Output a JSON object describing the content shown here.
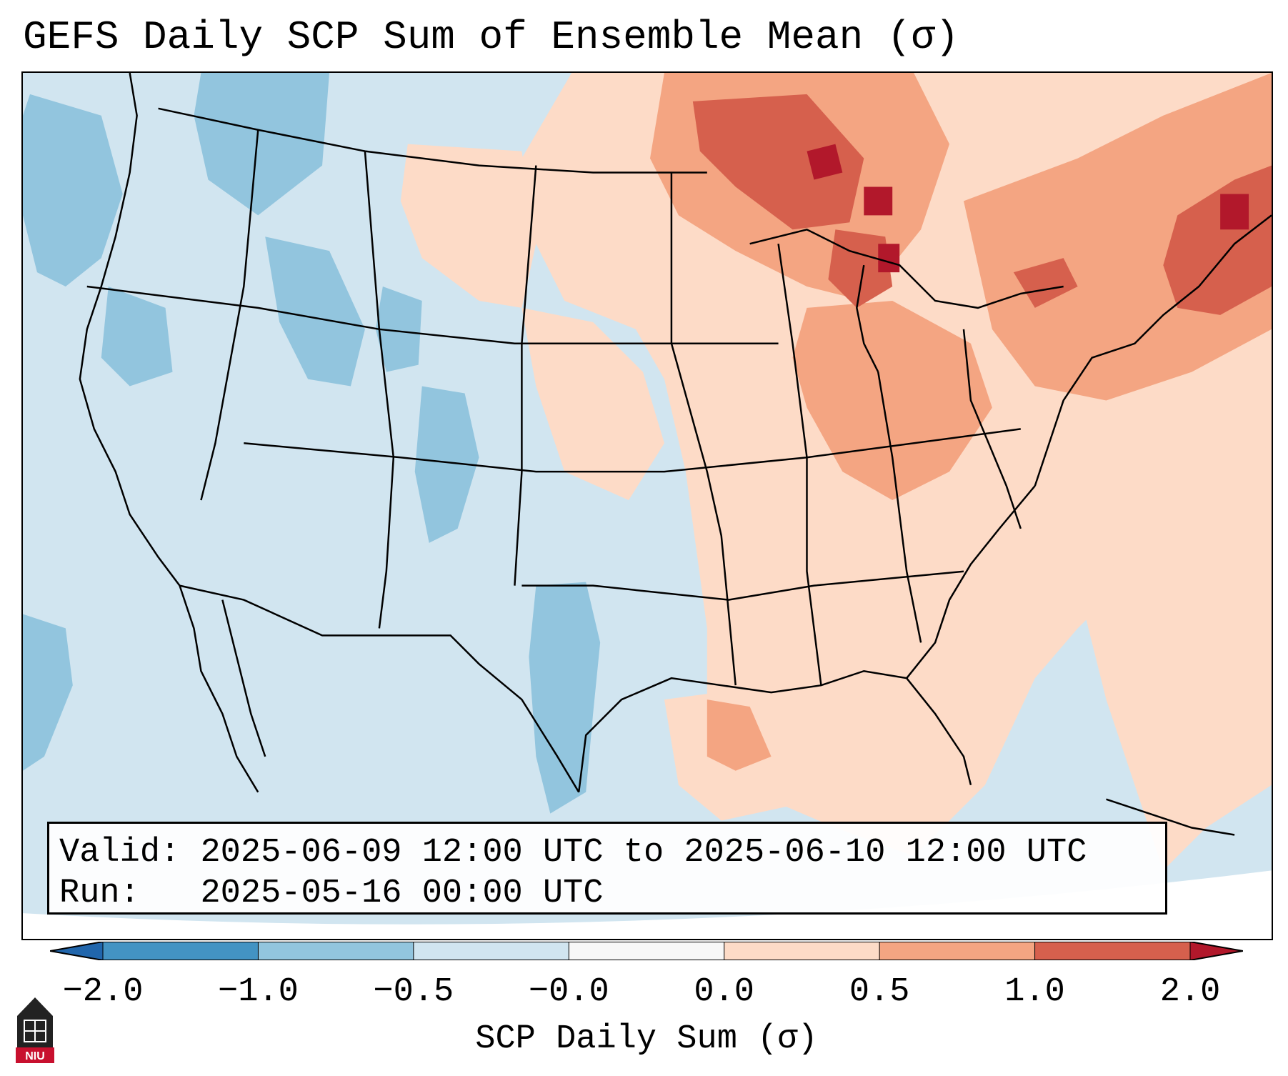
{
  "title": "GEFS Daily SCP Sum of Ensemble Mean (σ)",
  "info": {
    "valid_label": "Valid:",
    "valid_value": "2025-06-09 12:00 UTC to 2025-06-10 12:00 UTC",
    "run_label": "Run:",
    "run_value": "2025-05-16 00:00 UTC"
  },
  "colorbar": {
    "label": "SCP Daily Sum (σ)",
    "ticks": [
      "−2.0",
      "−1.0",
      "−0.5",
      "−0.0",
      "0.0",
      "0.5",
      "1.0",
      "2.0"
    ],
    "bin_colors": [
      "#4393c3",
      "#92c5de",
      "#d1e5f0",
      "#f7f7f7",
      "#fddbc7",
      "#f4a582",
      "#d6604d"
    ],
    "extend_low_color": "#2166ac",
    "extend_high_color": "#b2182b"
  },
  "map_colors": {
    "ocean": "#d1e5f0",
    "neg_strong": "#92c5de",
    "pos_light": "#fddbc7",
    "pos_mid": "#f4a582",
    "pos_strong": "#d6604d",
    "pos_max": "#b2182b",
    "outline": "#000000"
  },
  "logo": {
    "text": "NIU",
    "color": "#c8102e"
  }
}
